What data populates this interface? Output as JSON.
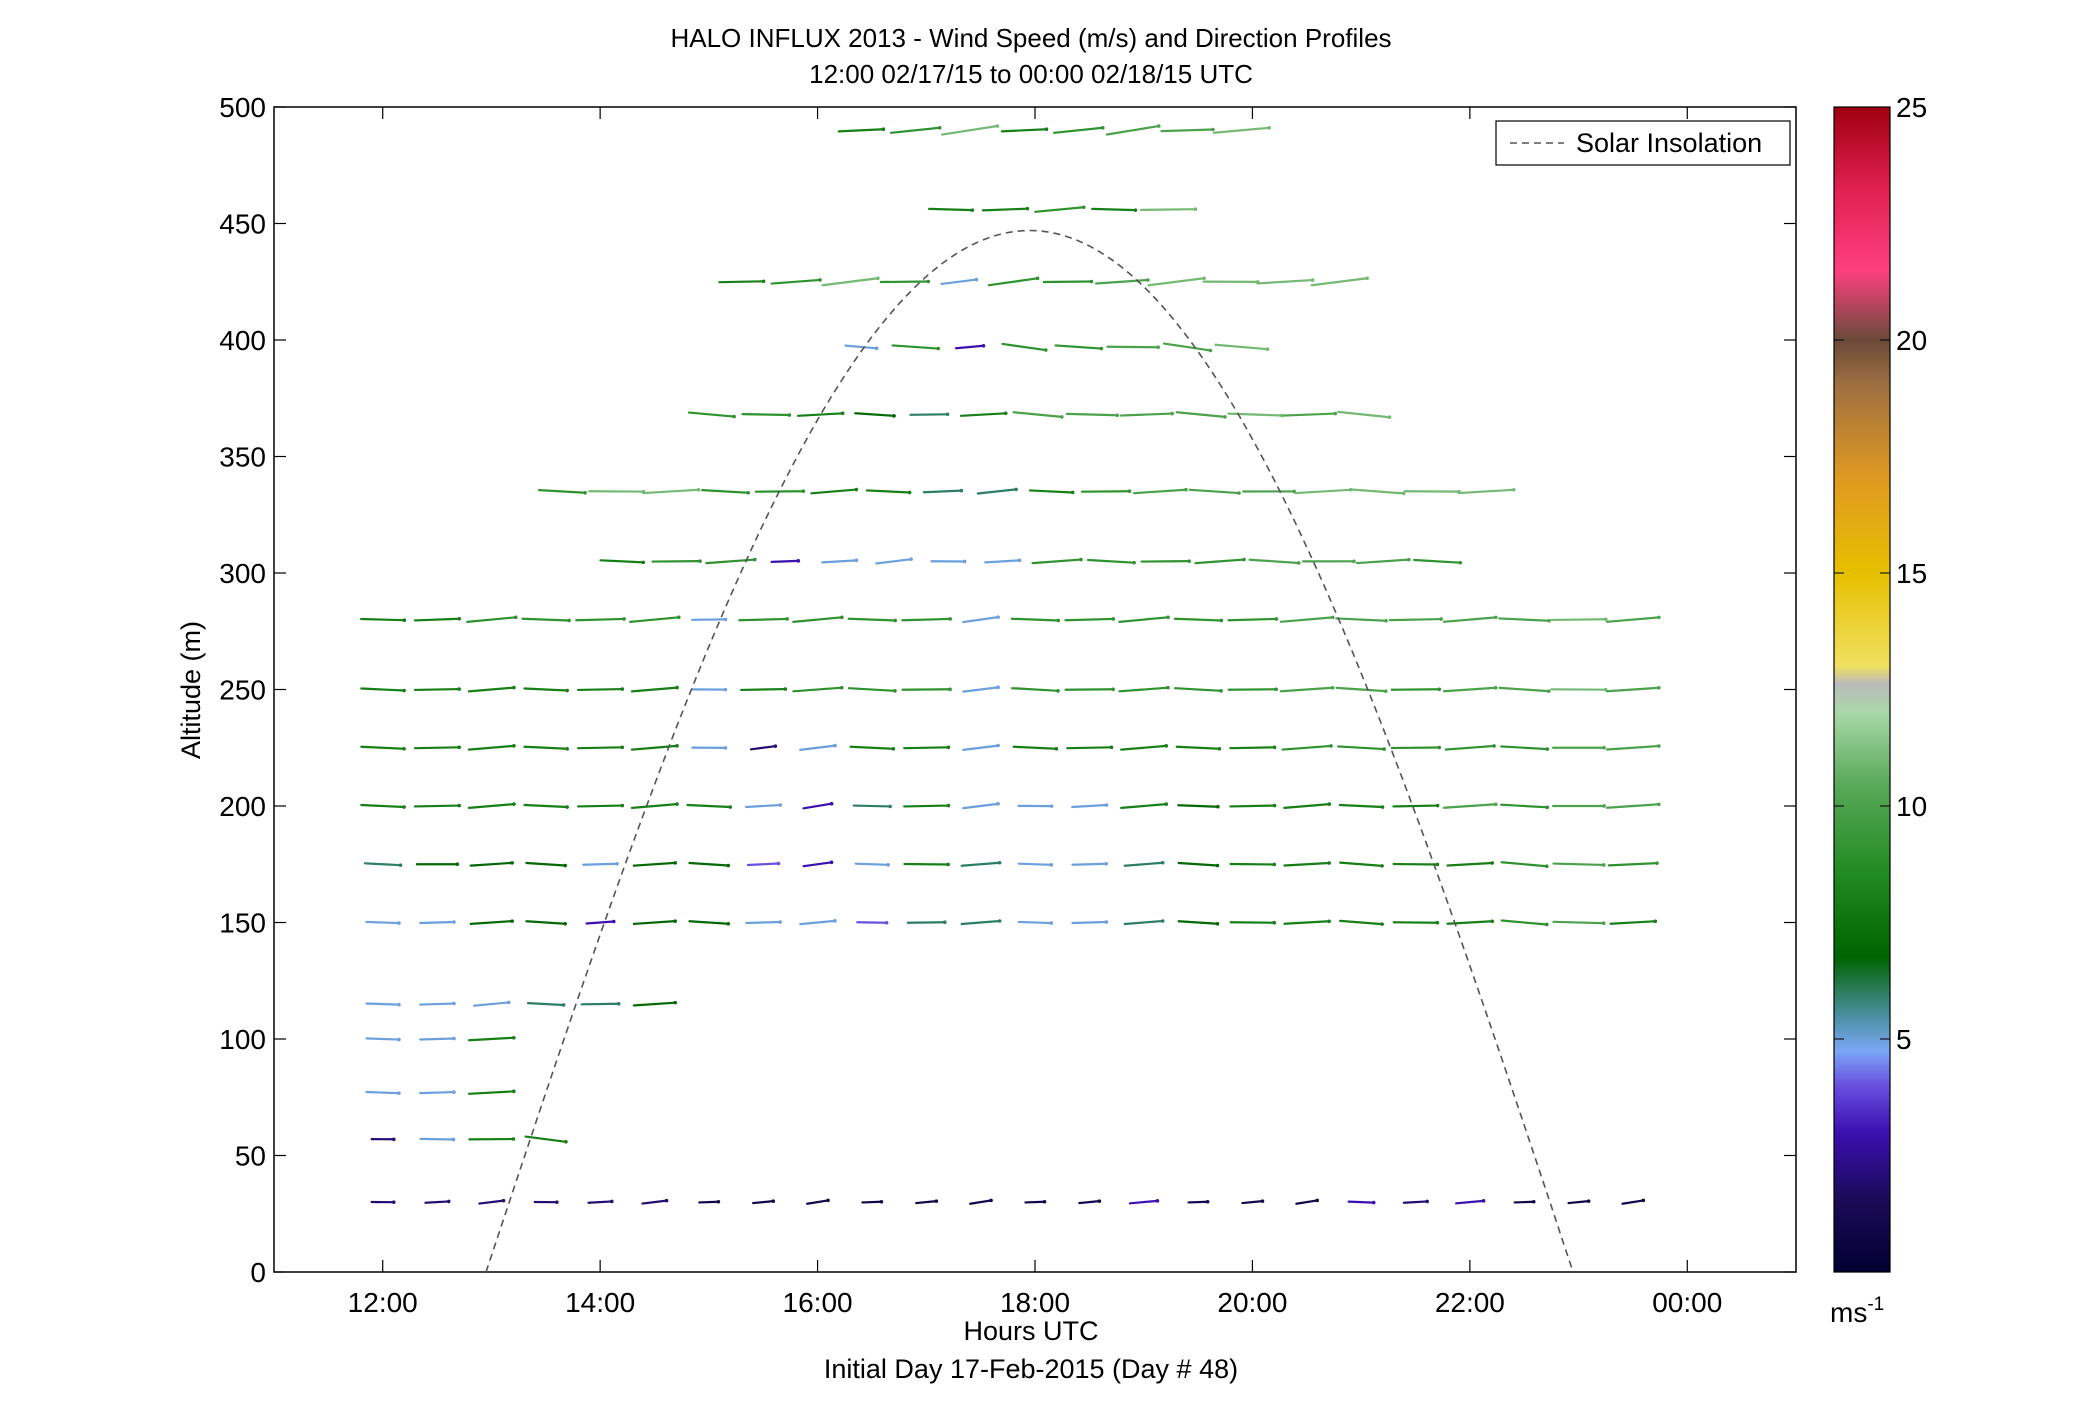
{
  "title": "HALO INFLUX 2013 - Wind Speed (m/s) and Direction Profiles",
  "subtitle": "12:00 02/17/15 to 00:00 02/18/15  UTC",
  "xlabel": "Hours UTC",
  "footer": "Initial Day 17-Feb-2015 (Day # 48)",
  "ylabel": "Altitude (m)",
  "legend_label": "Solar Insolation",
  "colorbar_unit": "ms",
  "colorbar_unit_exp": "-1",
  "colorbar_ticks": [
    "5",
    "10",
    "15",
    "20",
    "25"
  ],
  "colors": {
    "insolation": "#555555"
  },
  "chart_data": {
    "type": "quiver",
    "title": "HALO INFLUX 2013 - Wind Speed (m/s) and Direction Profiles",
    "subtitle": "12:00 02/17/15 to 00:00 02/18/15  UTC",
    "xlabel": "Hours UTC",
    "ylabel": "Altitude (m)",
    "xlim": [
      11.0,
      25.0
    ],
    "ylim": [
      0,
      500
    ],
    "x_ticks": [
      "12:00",
      "14:00",
      "16:00",
      "18:00",
      "20:00",
      "22:00",
      "00:00"
    ],
    "y_ticks": [
      "0",
      "50",
      "100",
      "150",
      "200",
      "250",
      "300",
      "350",
      "400",
      "450",
      "500"
    ],
    "colorbar": {
      "label": "ms-1",
      "range": [
        0,
        25
      ],
      "ticks": [
        5,
        10,
        15,
        20,
        25
      ]
    },
    "legend": {
      "entries": [
        "Solar Insolation"
      ],
      "placement": "top-right",
      "style": "dashed"
    },
    "solar_insolation_peak": {
      "hour": 17.9,
      "altitude": 447
    },
    "solar_insolation_zero": [
      12.95,
      22.95
    ],
    "vector_rows": [
      {
        "alt": 30,
        "dir": 250,
        "speeds": [
          2,
          2,
          2,
          2,
          2,
          2,
          1,
          1,
          1,
          1,
          1,
          1,
          1,
          1,
          3,
          1,
          1,
          1,
          3,
          2,
          3,
          1,
          1,
          1
        ]
      },
      {
        "alt": 150,
        "dir": 255,
        "speeds": [
          5,
          5,
          7,
          7,
          3,
          7,
          7,
          5,
          5,
          4,
          6,
          6,
          5,
          5,
          6,
          7,
          8,
          8,
          8,
          8,
          8,
          9,
          10,
          8
        ]
      },
      {
        "alt": 175,
        "dir": 255,
        "speeds": [
          6,
          7,
          7,
          7,
          5,
          7,
          7,
          4,
          3,
          5,
          8,
          6,
          5,
          5,
          6,
          7,
          8,
          8,
          8,
          8,
          8,
          9,
          10,
          9
        ]
      },
      {
        "alt": 200,
        "dir": 258,
        "speeds": [
          8,
          8,
          8,
          8,
          8,
          8,
          8,
          5,
          3,
          6,
          8,
          5,
          5,
          5,
          8,
          7,
          8,
          8,
          8,
          8,
          10,
          9,
          10,
          10
        ]
      },
      {
        "alt": 225,
        "dir": 258,
        "speeds": [
          8,
          8,
          8,
          8,
          8,
          8,
          5,
          2,
          5,
          8,
          8,
          5,
          8,
          8,
          8,
          8,
          8,
          9,
          9,
          9,
          9,
          9,
          10,
          10
        ]
      },
      {
        "alt": 250,
        "dir": 258,
        "speeds": [
          8,
          8,
          8,
          8,
          8,
          8,
          5,
          8,
          9,
          9,
          9,
          5,
          9,
          9,
          9,
          9,
          9,
          10,
          10,
          9,
          10,
          10,
          11,
          10
        ]
      },
      {
        "alt": 280,
        "dir": 260,
        "speeds": [
          8,
          8,
          9,
          9,
          9,
          9,
          5,
          9,
          9,
          9,
          9,
          5,
          9,
          9,
          9,
          9,
          9,
          10,
          10,
          10,
          10,
          10,
          11,
          10
        ]
      },
      {
        "alt": 305,
        "dir": 258,
        "speeds": [
          8,
          9,
          9,
          3,
          5,
          5,
          5,
          5,
          9,
          9,
          9,
          9,
          10,
          10,
          10,
          9
        ]
      },
      {
        "alt": 335,
        "dir": 258,
        "speeds": [
          9,
          11,
          11,
          9,
          9,
          8,
          8,
          6,
          6,
          8,
          9,
          10,
          10,
          10,
          11,
          11,
          11,
          11
        ]
      },
      {
        "alt": 368,
        "dir": 255,
        "speeds": [
          9,
          9,
          8,
          7,
          6,
          8,
          10,
          10,
          10,
          10,
          11,
          10,
          11
        ]
      },
      {
        "alt": 397,
        "dir": 250,
        "speeds": [
          5,
          9,
          3,
          9,
          9,
          10,
          10,
          11
        ]
      },
      {
        "alt": 425,
        "dir": 265,
        "speeds": [
          8,
          9,
          11,
          9,
          5,
          9,
          9,
          10,
          11,
          11,
          11,
          11
        ]
      },
      {
        "alt": 456,
        "dir": 260,
        "speeds": [
          8,
          8,
          9,
          8,
          11
        ]
      },
      {
        "alt": 490,
        "dir": 268,
        "speeds": [
          8,
          9,
          11,
          8,
          9,
          10,
          10,
          11
        ]
      },
      {
        "alt": 115,
        "dir": 255,
        "speeds": [
          5,
          5,
          5,
          6,
          6,
          7
        ]
      },
      {
        "alt": 100,
        "dir": 255,
        "speeds": [
          5,
          5,
          8
        ]
      },
      {
        "alt": 77,
        "dir": 255,
        "speeds": [
          5,
          5,
          8
        ]
      },
      {
        "alt": 57,
        "dir": 250,
        "speeds": [
          2,
          5,
          8,
          8
        ]
      }
    ]
  }
}
